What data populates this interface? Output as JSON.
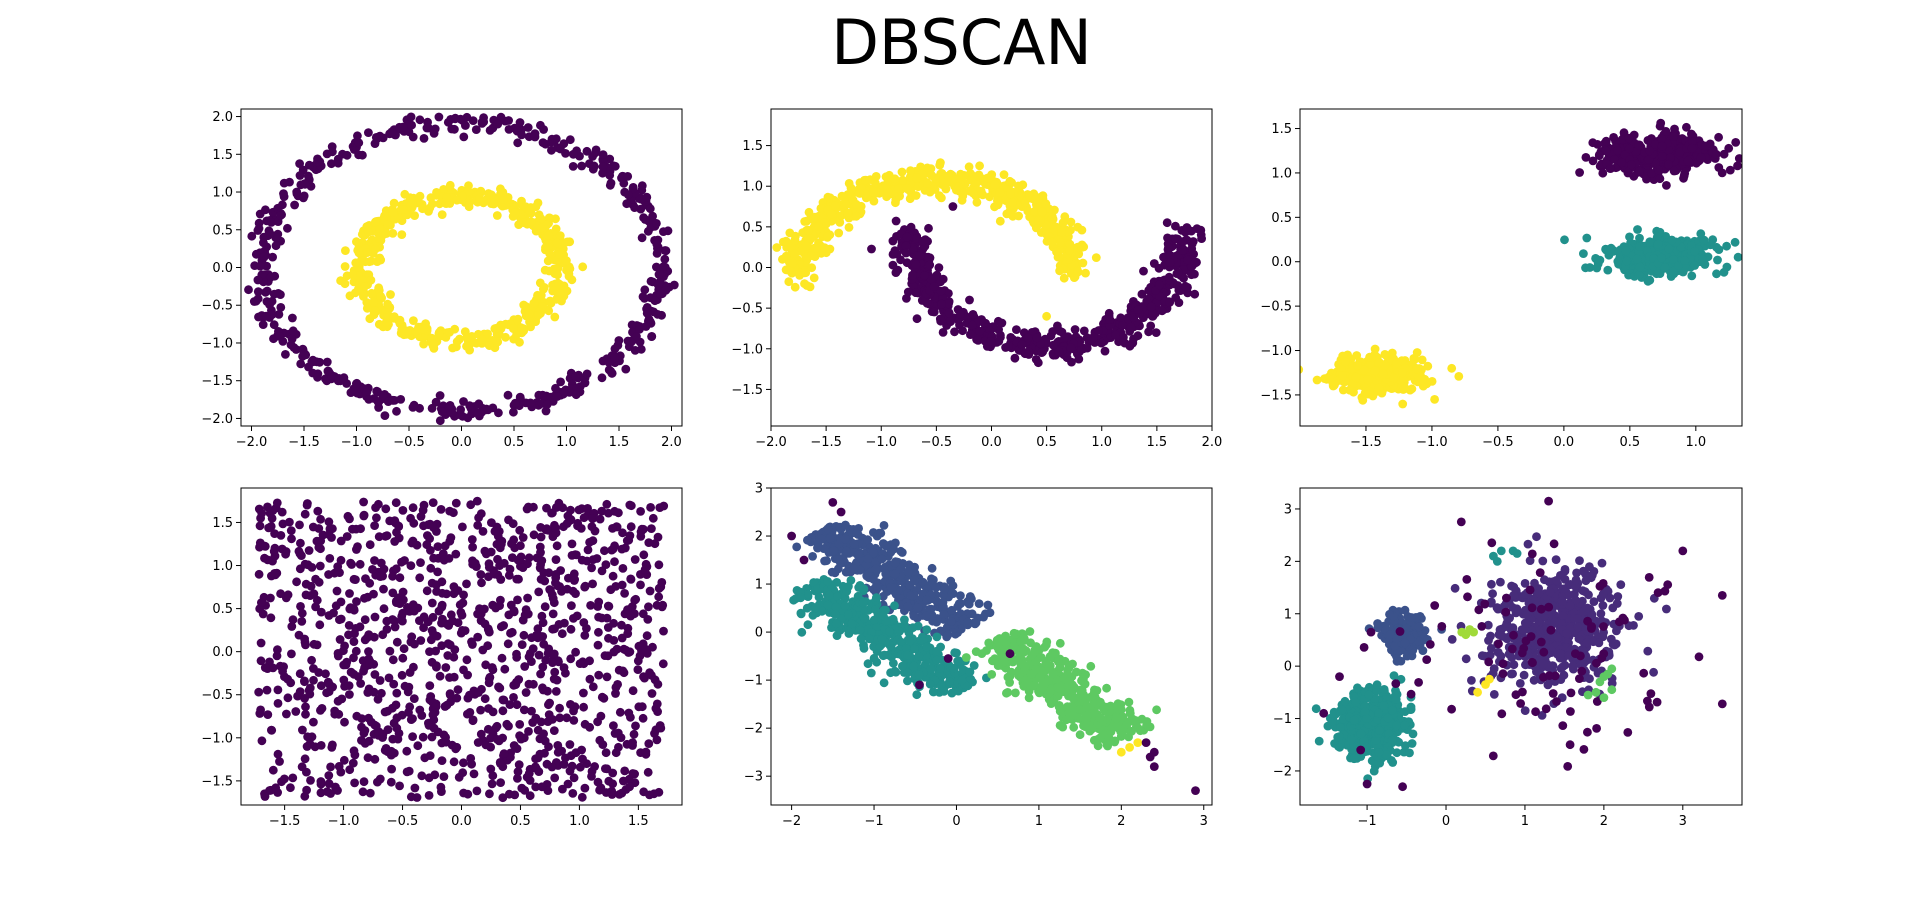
{
  "figure": {
    "title": "DBSCAN"
  },
  "palette": {
    "c0": "#440154",
    "c1": "#3b528b",
    "c2": "#21918c",
    "c3": "#5ec962",
    "c4": "#fde725",
    "c_lime": "#a0da39"
  },
  "chart_data": [
    {
      "type": "scatter",
      "name": "circles",
      "xlim": [
        -2.1,
        2.1
      ],
      "ylim": [
        -2.1,
        2.1
      ],
      "xticks": [
        -2.0,
        -1.5,
        -1.0,
        -0.5,
        0.0,
        0.5,
        1.0,
        1.5,
        2.0
      ],
      "yticks": [
        -2.0,
        -1.5,
        -1.0,
        -0.5,
        0.0,
        0.5,
        1.0,
        1.5,
        2.0
      ],
      "tick_decimals": 1,
      "clusters": [
        {
          "label": 0,
          "color": "#440154",
          "shape": "ring",
          "cx": 0.0,
          "cy": 0.0,
          "r": 1.9,
          "noise": 0.07,
          "n": 520
        },
        {
          "label": 1,
          "color": "#fde725",
          "shape": "ring",
          "cx": 0.0,
          "cy": 0.0,
          "r": 0.95,
          "noise": 0.08,
          "n": 520
        }
      ],
      "points": []
    },
    {
      "type": "scatter",
      "name": "moons",
      "xlim": [
        -2.0,
        2.0
      ],
      "ylim": [
        -1.95,
        1.95
      ],
      "xticks": [
        -2.0,
        -1.5,
        -1.0,
        -0.5,
        0.0,
        0.5,
        1.0,
        1.5,
        2.0
      ],
      "yticks": [
        -1.5,
        -1.0,
        -0.5,
        0.0,
        0.5,
        1.0,
        1.5
      ],
      "tick_decimals": 1,
      "clusters": [
        {
          "label": 0,
          "color": "#fde725",
          "shape": "arc",
          "cx": -0.5,
          "cy": -0.1,
          "r": 1.25,
          "sx": 1.0,
          "sy": 1.25,
          "a0": 0,
          "a1": 180,
          "noise": 0.09,
          "n": 600
        },
        {
          "label": 1,
          "color": "#440154",
          "shape": "arc",
          "cx": 0.5,
          "cy": 0.45,
          "r": 1.25,
          "sx": 1.0,
          "sy": 1.5,
          "a0": 180,
          "a1": 360,
          "noise": 0.09,
          "n": 600
        }
      ],
      "points": [
        {
          "x": -0.35,
          "y": 0.75,
          "c": "#440154"
        },
        {
          "x": 0.5,
          "y": -0.6,
          "c": "#fde725"
        },
        {
          "x": -0.2,
          "y": -0.4,
          "c": "#440154"
        }
      ]
    },
    {
      "type": "scatter",
      "name": "blobs",
      "xlim": [
        -2.0,
        1.35
      ],
      "ylim": [
        -1.85,
        1.72
      ],
      "xticks": [
        -1.5,
        -1.0,
        -0.5,
        0.0,
        0.5,
        1.0
      ],
      "yticks": [
        -1.5,
        -1.0,
        -0.5,
        0.0,
        0.5,
        1.0,
        1.5
      ],
      "tick_decimals": 1,
      "clusters": [
        {
          "label": 0,
          "color": "#440154",
          "shape": "blob",
          "cx": 0.68,
          "cy": 1.2,
          "sx": 0.22,
          "sy": 0.12,
          "n": 420
        },
        {
          "label": 1,
          "color": "#21918c",
          "shape": "blob",
          "cx": 0.72,
          "cy": 0.07,
          "sx": 0.22,
          "sy": 0.1,
          "n": 420
        },
        {
          "label": 2,
          "color": "#fde725",
          "shape": "blob",
          "cx": -1.4,
          "cy": -1.27,
          "sx": 0.18,
          "sy": 0.1,
          "n": 420
        }
      ],
      "points": [
        {
          "x": 0.35,
          "y": 1.05,
          "c": "#440154"
        },
        {
          "x": 1.2,
          "y": 1.0,
          "c": "#440154"
        },
        {
          "x": -0.98,
          "y": -1.55,
          "c": "#fde725"
        },
        {
          "x": -0.85,
          "y": -1.2,
          "c": "#fde725"
        }
      ]
    },
    {
      "type": "scatter",
      "name": "uniform",
      "xlim": [
        -1.87,
        1.87
      ],
      "ylim": [
        -1.78,
        1.9
      ],
      "xticks": [
        -1.5,
        -1.0,
        -0.5,
        0.0,
        0.5,
        1.0,
        1.5
      ],
      "yticks": [
        -1.5,
        -1.0,
        -0.5,
        0.0,
        0.5,
        1.0,
        1.5
      ],
      "tick_decimals": 1,
      "clusters": [
        {
          "label": 0,
          "color": "#440154",
          "shape": "rect",
          "x0": -1.72,
          "x1": 1.72,
          "y0": -1.7,
          "y1": 1.75,
          "n": 1150
        }
      ],
      "points": []
    },
    {
      "type": "scatter",
      "name": "anisotropic",
      "xlim": [
        -2.25,
        3.1
      ],
      "ylim": [
        -3.6,
        3.0
      ],
      "xticks": [
        -2,
        -1,
        0,
        1,
        2,
        3
      ],
      "yticks": [
        -3,
        -2,
        -1,
        0,
        1,
        2,
        3
      ],
      "tick_decimals": 0,
      "clusters": [
        {
          "label": 1,
          "color": "#3b528b",
          "shape": "line",
          "cx": -0.75,
          "cy": 1.1,
          "dx": 0.66,
          "dy": -0.75,
          "len": 1.35,
          "width": 0.22,
          "n": 420
        },
        {
          "label": 2,
          "color": "#21918c",
          "shape": "line",
          "cx": -0.85,
          "cy": -0.1,
          "dx": 0.63,
          "dy": -0.77,
          "len": 1.45,
          "width": 0.22,
          "n": 420
        },
        {
          "label": 3,
          "color": "#5ec962",
          "shape": "line",
          "cx": 1.3,
          "cy": -1.15,
          "dx": 0.6,
          "dy": -0.8,
          "len": 1.3,
          "width": 0.22,
          "n": 420
        }
      ],
      "points": [
        {
          "x": -2.0,
          "y": 2.0,
          "c": "#440154"
        },
        {
          "x": -1.85,
          "y": 1.5,
          "c": "#440154"
        },
        {
          "x": -1.5,
          "y": 2.7,
          "c": "#440154"
        },
        {
          "x": -1.4,
          "y": 2.5,
          "c": "#440154"
        },
        {
          "x": -0.45,
          "y": -1.1,
          "c": "#440154"
        },
        {
          "x": -0.1,
          "y": -0.55,
          "c": "#440154"
        },
        {
          "x": 0.65,
          "y": -0.45,
          "c": "#440154"
        },
        {
          "x": 2.0,
          "y": -2.5,
          "c": "#fde725"
        },
        {
          "x": 2.1,
          "y": -2.4,
          "c": "#fde725"
        },
        {
          "x": 2.2,
          "y": -2.3,
          "c": "#fde725"
        },
        {
          "x": 2.3,
          "y": -2.3,
          "c": "#440154"
        },
        {
          "x": 2.4,
          "y": -2.5,
          "c": "#440154"
        },
        {
          "x": 2.35,
          "y": -2.6,
          "c": "#440154"
        },
        {
          "x": 2.4,
          "y": -2.8,
          "c": "#440154"
        },
        {
          "x": 2.9,
          "y": -3.3,
          "c": "#440154"
        }
      ]
    },
    {
      "type": "scatter",
      "name": "varied",
      "xlim": [
        -1.85,
        3.75
      ],
      "ylim": [
        -2.65,
        3.4
      ],
      "xticks": [
        -1,
        0,
        1,
        2,
        3
      ],
      "yticks": [
        -2,
        -1,
        0,
        1,
        2,
        3
      ],
      "tick_decimals": 0,
      "clusters": [
        {
          "label": 1,
          "color": "#3b528b",
          "shape": "blob",
          "cx": -0.55,
          "cy": 0.6,
          "sx": 0.13,
          "sy": 0.18,
          "n": 220
        },
        {
          "label": 2,
          "color": "#21918c",
          "shape": "blob",
          "cx": -0.95,
          "cy": -1.1,
          "sx": 0.22,
          "sy": 0.3,
          "n": 520
        },
        {
          "label": 0,
          "color": "#472c7a",
          "shape": "blob",
          "cx": 1.35,
          "cy": 0.7,
          "sx": 0.42,
          "sy": 0.55,
          "n": 560
        },
        {
          "label": 5,
          "color": "#440154",
          "shape": "blob",
          "cx": 1.3,
          "cy": 0.3,
          "sx": 0.9,
          "sy": 1.0,
          "n": 90
        }
      ],
      "points": [
        {
          "x": 0.6,
          "y": 2.1,
          "c": "#21918c"
        },
        {
          "x": 0.7,
          "y": 2.2,
          "c": "#21918c"
        },
        {
          "x": 0.85,
          "y": 2.2,
          "c": "#21918c"
        },
        {
          "x": 0.9,
          "y": 2.15,
          "c": "#21918c"
        },
        {
          "x": 0.65,
          "y": 2.0,
          "c": "#21918c"
        },
        {
          "x": 0.2,
          "y": 0.65,
          "c": "#a0da39"
        },
        {
          "x": 0.3,
          "y": 0.7,
          "c": "#a0da39"
        },
        {
          "x": 0.25,
          "y": 0.6,
          "c": "#a0da39"
        },
        {
          "x": 0.35,
          "y": 0.65,
          "c": "#a0da39"
        },
        {
          "x": 0.4,
          "y": -0.5,
          "c": "#fde725"
        },
        {
          "x": 0.5,
          "y": -0.35,
          "c": "#fde725"
        },
        {
          "x": 0.55,
          "y": -0.25,
          "c": "#fde725"
        },
        {
          "x": 1.8,
          "y": -0.55,
          "c": "#5ec962"
        },
        {
          "x": 1.9,
          "y": -0.5,
          "c": "#5ec962"
        },
        {
          "x": 1.95,
          "y": -0.3,
          "c": "#5ec962"
        },
        {
          "x": 2.0,
          "y": -0.2,
          "c": "#5ec962"
        },
        {
          "x": 2.05,
          "y": -0.15,
          "c": "#5ec962"
        },
        {
          "x": 2.1,
          "y": -0.05,
          "c": "#5ec962"
        },
        {
          "x": 2.0,
          "y": -0.6,
          "c": "#5ec962"
        },
        {
          "x": 2.1,
          "y": -0.45,
          "c": "#5ec962"
        },
        {
          "x": 1.3,
          "y": 3.15,
          "c": "#440154"
        },
        {
          "x": 3.5,
          "y": 1.35,
          "c": "#440154"
        },
        {
          "x": 3.5,
          "y": -0.72,
          "c": "#440154"
        },
        {
          "x": 3.0,
          "y": 2.2,
          "c": "#440154"
        },
        {
          "x": -1.0,
          "y": -2.25,
          "c": "#440154"
        },
        {
          "x": -0.55,
          "y": -2.3,
          "c": "#440154"
        },
        {
          "x": -1.55,
          "y": -0.9,
          "c": "#440154"
        },
        {
          "x": -1.35,
          "y": -0.2,
          "c": "#440154"
        },
        {
          "x": -0.95,
          "y": 0.65,
          "c": "#440154"
        }
      ]
    }
  ]
}
